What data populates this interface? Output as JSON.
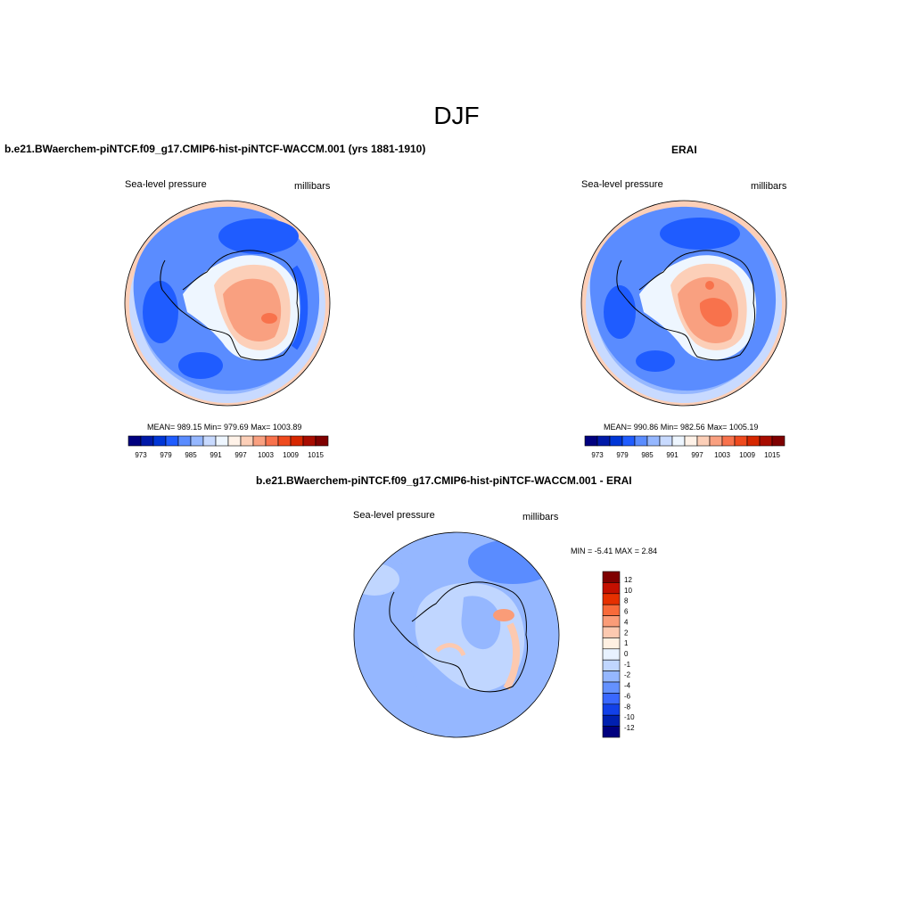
{
  "page": {
    "title": "DJF"
  },
  "panels": [
    {
      "title": "b.e21.BWaerchem-piNTCF.f09_g17.CMIP6-hist-piNTCF-WACCM.001 (yrs 1881-1910)",
      "left_label": "Sea-level pressure",
      "right_label": "millibars",
      "stats": "MEAN= 989.15  Min= 979.69  Max= 1003.89",
      "colorbar_labels": [
        "973",
        "979",
        "985",
        "991",
        "997",
        "1003",
        "1009",
        "1015"
      ]
    },
    {
      "title": "ERAI",
      "left_label": "Sea-level pressure",
      "right_label": "millibars",
      "stats": "MEAN= 990.86  Min= 982.56  Max= 1005.19",
      "colorbar_labels": [
        "973",
        "979",
        "985",
        "991",
        "997",
        "1003",
        "1009",
        "1015"
      ]
    },
    {
      "title": "b.e21.BWaerchem-piNTCF.f09_g17.CMIP6-hist-piNTCF-WACCM.001 - ERAI",
      "left_label": "Sea-level pressure",
      "right_label": "millibars",
      "stats": "MIN =  -5.41 MAX =   2.84",
      "colorbar_labels": [
        "12",
        "10",
        "8",
        "6",
        "4",
        "2",
        "1",
        "0",
        "-1",
        "-2",
        "-4",
        "-6",
        "-8",
        "-10",
        "-12"
      ]
    }
  ],
  "colors": {
    "scale_abs": [
      "#00007f",
      "#0019a8",
      "#0036d6",
      "#1f5cff",
      "#5a8cff",
      "#95b7ff",
      "#c8daff",
      "#eef6ff",
      "#fff2e8",
      "#fccfb8",
      "#f9a080",
      "#f8724c",
      "#ef4a1e",
      "#d62700",
      "#a80c00",
      "#7f0000"
    ],
    "scale_diff": [
      "#7f0000",
      "#c41000",
      "#e63000",
      "#f86a3a",
      "#fa9c78",
      "#fcc9b0",
      "#fff0e2",
      "#e8f2ff",
      "#c0d6ff",
      "#95b7ff",
      "#6491ff",
      "#3a68ff",
      "#1240e8",
      "#0020b0",
      "#00007f"
    ]
  }
}
